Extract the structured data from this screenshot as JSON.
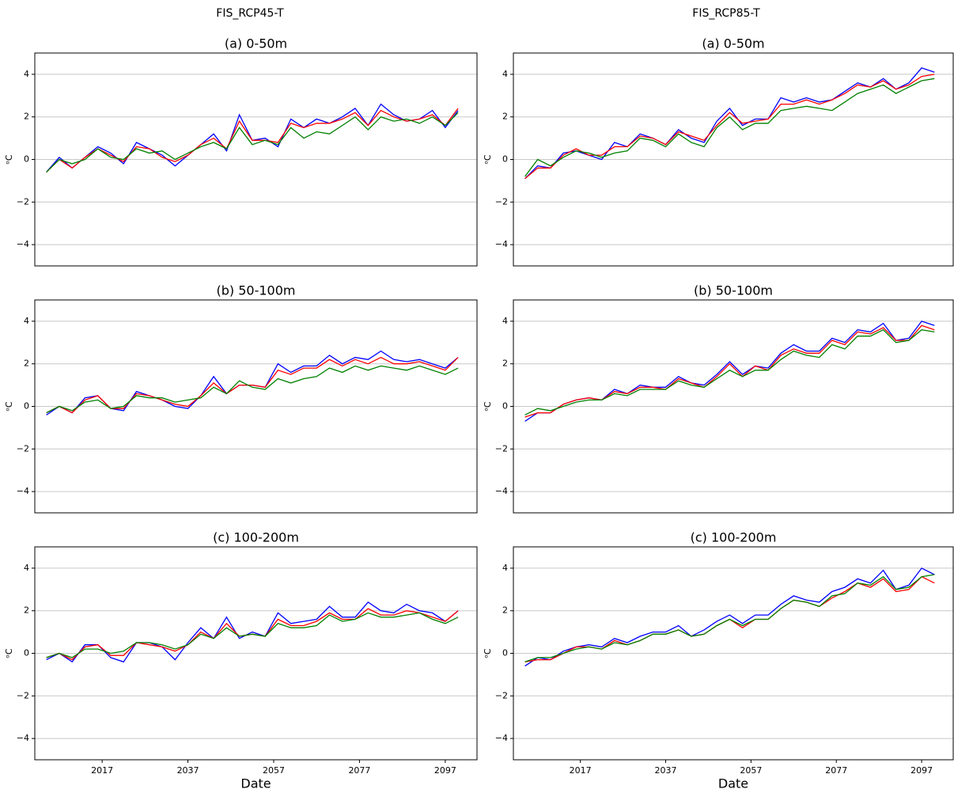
{
  "titles": [
    "FIS_RCP45-T",
    "FIS_RCP85-T"
  ],
  "chart_data": [
    {
      "type": "line",
      "title": "(a) 0-50m",
      "ylabel": "ᵒC",
      "x": [
        2004,
        2007,
        2010,
        2013,
        2016,
        2019,
        2022,
        2025,
        2028,
        2031,
        2034,
        2037,
        2040,
        2043,
        2046,
        2049,
        2052,
        2055,
        2058,
        2061,
        2064,
        2067,
        2070,
        2073,
        2076,
        2079,
        2082,
        2085,
        2088,
        2091,
        2094,
        2097,
        2100
      ],
      "xlim": [
        2001.3,
        2104.4
      ],
      "ylim": [
        -5,
        5
      ],
      "yticks": [
        {
          "value": -4,
          "label": "−4"
        },
        {
          "value": -2,
          "label": "−2"
        },
        0,
        2,
        4
      ],
      "grid": true,
      "series": [
        {
          "color": "#0000ff",
          "values": [
            -0.6,
            0.1,
            -0.4,
            0.1,
            0.6,
            0.3,
            -0.2,
            0.8,
            0.5,
            0.2,
            -0.3,
            0.2,
            0.7,
            1.2,
            0.4,
            2.1,
            0.9,
            1.0,
            0.6,
            1.9,
            1.5,
            1.9,
            1.7,
            2.0,
            2.4,
            1.6,
            2.6,
            2.1,
            1.8,
            1.9,
            2.3,
            1.5,
            2.3
          ]
        },
        {
          "color": "#ff0000",
          "values": [
            -0.6,
            0.0,
            -0.4,
            0.1,
            0.5,
            0.2,
            -0.1,
            0.6,
            0.5,
            0.1,
            -0.1,
            0.2,
            0.7,
            1.0,
            0.5,
            1.8,
            0.9,
            0.9,
            0.8,
            1.7,
            1.5,
            1.7,
            1.7,
            1.9,
            2.2,
            1.6,
            2.3,
            2.0,
            1.8,
            1.9,
            2.1,
            1.6,
            2.4
          ]
        },
        {
          "color": "#008000",
          "values": [
            -0.6,
            0.0,
            -0.2,
            0.0,
            0.5,
            0.1,
            0.0,
            0.5,
            0.3,
            0.4,
            0.0,
            0.3,
            0.6,
            0.8,
            0.5,
            1.5,
            0.7,
            0.9,
            0.7,
            1.5,
            1.0,
            1.3,
            1.2,
            1.6,
            2.0,
            1.4,
            2.0,
            1.8,
            1.9,
            1.7,
            2.0,
            1.6,
            2.2
          ]
        }
      ]
    },
    {
      "type": "line",
      "title": "(a) 0-50m",
      "ylabel": "ᵒC",
      "x": [
        2004,
        2007,
        2010,
        2013,
        2016,
        2019,
        2022,
        2025,
        2028,
        2031,
        2034,
        2037,
        2040,
        2043,
        2046,
        2049,
        2052,
        2055,
        2058,
        2061,
        2064,
        2067,
        2070,
        2073,
        2076,
        2079,
        2082,
        2085,
        2088,
        2091,
        2094,
        2097,
        2100
      ],
      "xlim": [
        2001.3,
        2104.4
      ],
      "ylim": [
        -5,
        5
      ],
      "yticks": [
        {
          "value": -4,
          "label": "−4"
        },
        {
          "value": -2,
          "label": "−2"
        },
        0,
        2,
        4
      ],
      "grid": true,
      "series": [
        {
          "color": "#0000ff",
          "values": [
            -0.9,
            -0.3,
            -0.4,
            0.3,
            0.4,
            0.2,
            0.0,
            0.8,
            0.6,
            1.2,
            1.0,
            0.7,
            1.4,
            1.0,
            0.8,
            1.8,
            2.4,
            1.6,
            1.9,
            1.9,
            2.9,
            2.7,
            2.9,
            2.7,
            2.8,
            3.2,
            3.6,
            3.4,
            3.8,
            3.3,
            3.6,
            4.3,
            4.1
          ]
        },
        {
          "color": "#ff0000",
          "values": [
            -0.9,
            -0.4,
            -0.4,
            0.2,
            0.5,
            0.2,
            0.2,
            0.6,
            0.6,
            1.1,
            1.0,
            0.7,
            1.3,
            1.1,
            0.9,
            1.6,
            2.2,
            1.7,
            1.8,
            1.9,
            2.6,
            2.6,
            2.8,
            2.6,
            2.8,
            3.1,
            3.5,
            3.4,
            3.7,
            3.3,
            3.5,
            3.9,
            4.0
          ]
        },
        {
          "color": "#008000",
          "values": [
            -0.8,
            0.0,
            -0.3,
            0.1,
            0.4,
            0.3,
            0.1,
            0.3,
            0.4,
            1.0,
            0.9,
            0.6,
            1.2,
            0.8,
            0.6,
            1.5,
            2.0,
            1.4,
            1.7,
            1.7,
            2.3,
            2.4,
            2.5,
            2.4,
            2.3,
            2.7,
            3.1,
            3.3,
            3.5,
            3.1,
            3.4,
            3.7,
            3.8
          ]
        }
      ]
    },
    {
      "type": "line",
      "title": "(b) 50-100m",
      "ylabel": "ᵒC",
      "x": [
        2004,
        2007,
        2010,
        2013,
        2016,
        2019,
        2022,
        2025,
        2028,
        2031,
        2034,
        2037,
        2040,
        2043,
        2046,
        2049,
        2052,
        2055,
        2058,
        2061,
        2064,
        2067,
        2070,
        2073,
        2076,
        2079,
        2082,
        2085,
        2088,
        2091,
        2094,
        2097,
        2100
      ],
      "xlim": [
        2001.3,
        2104.4
      ],
      "ylim": [
        -5,
        5
      ],
      "yticks": [
        {
          "value": -4,
          "label": "−4"
        },
        {
          "value": -2,
          "label": "−2"
        },
        0,
        2,
        4
      ],
      "grid": true,
      "series": [
        {
          "color": "#0000ff",
          "values": [
            -0.4,
            0.0,
            -0.3,
            0.4,
            0.5,
            -0.1,
            -0.2,
            0.7,
            0.5,
            0.3,
            0.0,
            -0.1,
            0.5,
            1.4,
            0.6,
            1.0,
            1.0,
            0.9,
            2.0,
            1.6,
            1.9,
            1.9,
            2.4,
            2.0,
            2.3,
            2.2,
            2.6,
            2.2,
            2.1,
            2.2,
            2.0,
            1.8,
            2.3
          ]
        },
        {
          "color": "#ff0000",
          "values": [
            -0.3,
            0.0,
            -0.3,
            0.3,
            0.5,
            -0.1,
            -0.1,
            0.6,
            0.5,
            0.3,
            0.1,
            0.0,
            0.5,
            1.1,
            0.6,
            1.0,
            1.0,
            0.9,
            1.7,
            1.5,
            1.8,
            1.8,
            2.2,
            1.9,
            2.2,
            2.0,
            2.3,
            2.0,
            2.0,
            2.1,
            1.9,
            1.7,
            2.3
          ]
        },
        {
          "color": "#008000",
          "values": [
            -0.3,
            0.0,
            -0.2,
            0.2,
            0.3,
            -0.1,
            0.0,
            0.5,
            0.4,
            0.4,
            0.2,
            0.3,
            0.4,
            0.9,
            0.6,
            1.2,
            0.9,
            0.8,
            1.3,
            1.1,
            1.3,
            1.4,
            1.8,
            1.6,
            1.9,
            1.7,
            1.9,
            1.8,
            1.7,
            1.9,
            1.7,
            1.5,
            1.8
          ]
        }
      ]
    },
    {
      "type": "line",
      "title": "(b) 50-100m",
      "ylabel": "ᵒC",
      "x": [
        2004,
        2007,
        2010,
        2013,
        2016,
        2019,
        2022,
        2025,
        2028,
        2031,
        2034,
        2037,
        2040,
        2043,
        2046,
        2049,
        2052,
        2055,
        2058,
        2061,
        2064,
        2067,
        2070,
        2073,
        2076,
        2079,
        2082,
        2085,
        2088,
        2091,
        2094,
        2097,
        2100
      ],
      "xlim": [
        2001.3,
        2104.4
      ],
      "ylim": [
        -5,
        5
      ],
      "yticks": [
        {
          "value": -4,
          "label": "−4"
        },
        {
          "value": -2,
          "label": "−2"
        },
        0,
        2,
        4
      ],
      "grid": true,
      "series": [
        {
          "color": "#0000ff",
          "values": [
            -0.7,
            -0.3,
            -0.3,
            0.1,
            0.3,
            0.4,
            0.3,
            0.8,
            0.6,
            1.0,
            0.9,
            0.9,
            1.4,
            1.1,
            1.0,
            1.5,
            2.1,
            1.5,
            1.9,
            1.8,
            2.5,
            2.9,
            2.6,
            2.6,
            3.2,
            3.0,
            3.6,
            3.5,
            3.9,
            3.1,
            3.2,
            4.0,
            3.8
          ]
        },
        {
          "color": "#ff0000",
          "values": [
            -0.5,
            -0.3,
            -0.3,
            0.1,
            0.3,
            0.4,
            0.3,
            0.7,
            0.6,
            0.9,
            0.9,
            0.8,
            1.3,
            1.1,
            0.9,
            1.4,
            2.0,
            1.4,
            1.9,
            1.7,
            2.4,
            2.7,
            2.5,
            2.5,
            3.1,
            2.9,
            3.5,
            3.4,
            3.7,
            3.1,
            3.1,
            3.8,
            3.6
          ]
        },
        {
          "color": "#008000",
          "values": [
            -0.4,
            -0.1,
            -0.2,
            0.0,
            0.2,
            0.3,
            0.3,
            0.6,
            0.5,
            0.8,
            0.8,
            0.8,
            1.2,
            1.0,
            0.9,
            1.3,
            1.7,
            1.4,
            1.7,
            1.7,
            2.2,
            2.6,
            2.4,
            2.3,
            2.9,
            2.7,
            3.3,
            3.3,
            3.6,
            3.0,
            3.1,
            3.6,
            3.5
          ]
        }
      ]
    },
    {
      "type": "line",
      "title": "(c) 100-200m",
      "ylabel": "ᵒC",
      "xlabel": "Date",
      "x": [
        2004,
        2007,
        2010,
        2013,
        2016,
        2019,
        2022,
        2025,
        2028,
        2031,
        2034,
        2037,
        2040,
        2043,
        2046,
        2049,
        2052,
        2055,
        2058,
        2061,
        2064,
        2067,
        2070,
        2073,
        2076,
        2079,
        2082,
        2085,
        2088,
        2091,
        2094,
        2097,
        2100
      ],
      "xlim": [
        2001.3,
        2104.4
      ],
      "xticks": [
        2017,
        2037,
        2057,
        2077,
        2097
      ],
      "ylim": [
        -5,
        5
      ],
      "yticks": [
        {
          "value": -4,
          "label": "−4"
        },
        {
          "value": -2,
          "label": "−2"
        },
        0,
        2,
        4
      ],
      "grid": true,
      "series": [
        {
          "color": "#0000ff",
          "values": [
            -0.3,
            0.0,
            -0.4,
            0.4,
            0.4,
            -0.2,
            -0.4,
            0.5,
            0.5,
            0.3,
            -0.3,
            0.5,
            1.2,
            0.7,
            1.7,
            0.7,
            1.0,
            0.8,
            1.9,
            1.4,
            1.5,
            1.6,
            2.2,
            1.7,
            1.7,
            2.4,
            2.0,
            1.9,
            2.3,
            2.0,
            1.9,
            1.5,
            2.0
          ]
        },
        {
          "color": "#ff0000",
          "values": [
            -0.2,
            0.0,
            -0.3,
            0.3,
            0.4,
            -0.1,
            -0.1,
            0.5,
            0.4,
            0.3,
            0.1,
            0.4,
            1.0,
            0.7,
            1.4,
            0.8,
            0.9,
            0.8,
            1.6,
            1.3,
            1.3,
            1.5,
            1.9,
            1.6,
            1.6,
            2.1,
            1.8,
            1.8,
            2.0,
            1.9,
            1.7,
            1.5,
            2.0
          ]
        },
        {
          "color": "#008000",
          "values": [
            -0.2,
            0.0,
            -0.2,
            0.2,
            0.2,
            0.0,
            0.1,
            0.5,
            0.5,
            0.4,
            0.2,
            0.4,
            0.9,
            0.7,
            1.2,
            0.8,
            0.9,
            0.8,
            1.4,
            1.2,
            1.2,
            1.3,
            1.8,
            1.5,
            1.6,
            1.9,
            1.7,
            1.7,
            1.8,
            1.9,
            1.6,
            1.4,
            1.7
          ]
        }
      ]
    },
    {
      "type": "line",
      "title": "(c) 100-200m",
      "ylabel": "ᵒC",
      "xlabel": "Date",
      "x": [
        2004,
        2007,
        2010,
        2013,
        2016,
        2019,
        2022,
        2025,
        2028,
        2031,
        2034,
        2037,
        2040,
        2043,
        2046,
        2049,
        2052,
        2055,
        2058,
        2061,
        2064,
        2067,
        2070,
        2073,
        2076,
        2079,
        2082,
        2085,
        2088,
        2091,
        2094,
        2097,
        2100
      ],
      "xlim": [
        2001.3,
        2104.4
      ],
      "xticks": [
        2017,
        2037,
        2057,
        2077,
        2097
      ],
      "ylim": [
        -5,
        5
      ],
      "yticks": [
        {
          "value": -4,
          "label": "−4"
        },
        {
          "value": -2,
          "label": "−2"
        },
        0,
        2,
        4
      ],
      "grid": true,
      "series": [
        {
          "color": "#0000ff",
          "values": [
            -0.6,
            -0.2,
            -0.3,
            0.1,
            0.3,
            0.4,
            0.3,
            0.7,
            0.5,
            0.8,
            1.0,
            1.0,
            1.3,
            0.8,
            1.1,
            1.5,
            1.8,
            1.4,
            1.8,
            1.8,
            2.3,
            2.7,
            2.5,
            2.4,
            2.9,
            3.1,
            3.5,
            3.3,
            3.9,
            3.0,
            3.2,
            4.0,
            3.7
          ]
        },
        {
          "color": "#ff0000",
          "values": [
            -0.4,
            -0.3,
            -0.3,
            0.0,
            0.3,
            0.3,
            0.2,
            0.6,
            0.4,
            0.6,
            0.9,
            0.9,
            1.1,
            0.8,
            0.9,
            1.3,
            1.6,
            1.2,
            1.6,
            1.6,
            2.1,
            2.5,
            2.4,
            2.2,
            2.6,
            2.9,
            3.3,
            3.1,
            3.5,
            2.9,
            3.0,
            3.6,
            3.3
          ]
        },
        {
          "color": "#008000",
          "values": [
            -0.4,
            -0.2,
            -0.2,
            0.0,
            0.2,
            0.3,
            0.2,
            0.5,
            0.4,
            0.6,
            0.9,
            0.9,
            1.1,
            0.8,
            0.9,
            1.3,
            1.6,
            1.3,
            1.6,
            1.6,
            2.1,
            2.5,
            2.4,
            2.2,
            2.7,
            2.8,
            3.3,
            3.2,
            3.6,
            3.0,
            3.1,
            3.6,
            3.7
          ]
        }
      ]
    }
  ]
}
